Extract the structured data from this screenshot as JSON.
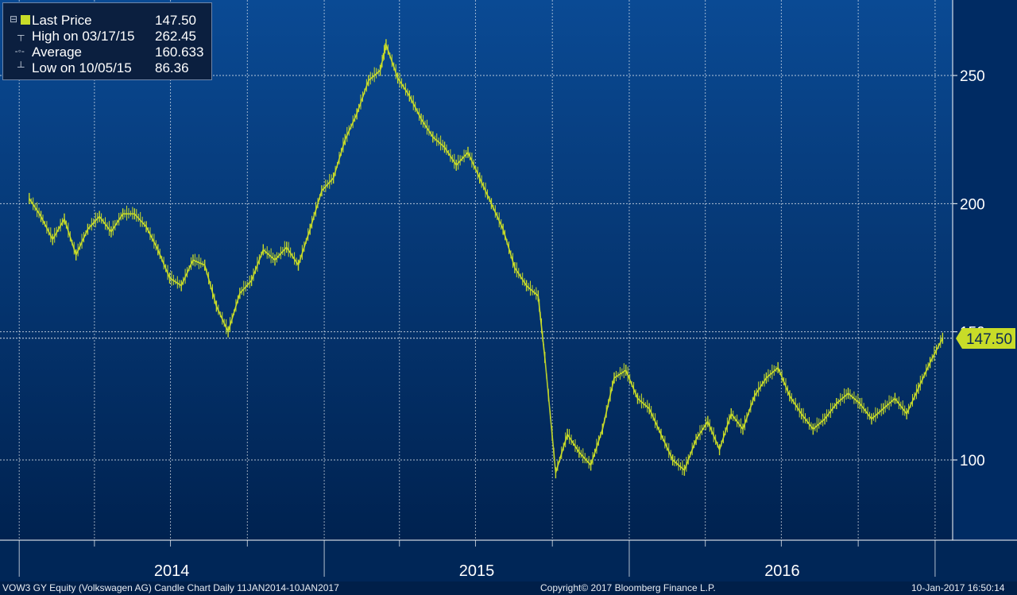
{
  "legend": {
    "last_price_label": "Last Price",
    "last_price_value": "147.50",
    "high_label": "High on 03/17/15",
    "high_value": "262.45",
    "average_label": "Average",
    "average_value": "160.633",
    "low_label": "Low on 10/05/15",
    "low_value": "86.36",
    "series_color": "#c8dc28"
  },
  "price_tag": "147.50",
  "footer": {
    "title": "VOW3 GY Equity (Volkswagen AG) Candle Chart  Daily 11JAN2014-10JAN2017",
    "copyright": "Copyright© 2017 Bloomberg Finance L.P.",
    "timestamp": "10-Jan-2017 16:50:14"
  },
  "chart_data": {
    "type": "line",
    "y_axis_position": "right",
    "ylim": [
      70,
      280
    ],
    "y_ticks": [
      100,
      150,
      200,
      250
    ],
    "y_tick_labels": [
      "100",
      "150",
      "200",
      "250"
    ],
    "x_labels": [
      "2014",
      "2015",
      "2016"
    ],
    "grid": true,
    "background": [
      "#0a4a94",
      "#002250"
    ],
    "series": [
      {
        "color": "#c8dc28",
        "x": [
          "2014-01-13",
          "2014-01-27",
          "2014-02-10",
          "2014-02-24",
          "2014-03-10",
          "2014-03-24",
          "2014-04-07",
          "2014-04-21",
          "2014-05-05",
          "2014-05-19",
          "2014-06-02",
          "2014-06-16",
          "2014-06-30",
          "2014-07-14",
          "2014-07-28",
          "2014-08-11",
          "2014-08-25",
          "2014-09-08",
          "2014-09-22",
          "2014-10-06",
          "2014-10-20",
          "2014-11-03",
          "2014-11-17",
          "2014-12-01",
          "2014-12-15",
          "2014-12-29",
          "2015-01-12",
          "2015-01-26",
          "2015-02-09",
          "2015-02-23",
          "2015-03-09",
          "2015-03-16",
          "2015-03-30",
          "2015-04-13",
          "2015-04-27",
          "2015-05-11",
          "2015-05-25",
          "2015-06-08",
          "2015-06-22",
          "2015-07-06",
          "2015-07-20",
          "2015-08-03",
          "2015-08-17",
          "2015-08-31",
          "2015-09-14",
          "2015-09-22",
          "2015-10-05",
          "2015-10-19",
          "2015-11-02",
          "2015-11-16",
          "2015-11-30",
          "2015-12-14",
          "2015-12-28",
          "2016-01-11",
          "2016-01-25",
          "2016-02-08",
          "2016-02-22",
          "2016-03-07",
          "2016-03-21",
          "2016-04-04",
          "2016-04-18",
          "2016-05-02",
          "2016-05-16",
          "2016-05-30",
          "2016-06-13",
          "2016-06-27",
          "2016-07-11",
          "2016-07-25",
          "2016-08-08",
          "2016-08-22",
          "2016-09-05",
          "2016-09-19",
          "2016-10-03",
          "2016-10-17",
          "2016-10-31",
          "2016-11-14",
          "2016-11-28",
          "2016-12-12",
          "2016-12-26",
          "2017-01-10"
        ],
        "values": [
          202,
          195,
          186,
          194,
          180,
          190,
          195,
          189,
          196,
          196,
          191,
          182,
          171,
          168,
          178,
          176,
          160,
          150,
          165,
          170,
          182,
          178,
          183,
          176,
          190,
          205,
          210,
          225,
          235,
          248,
          252,
          262,
          249,
          242,
          233,
          226,
          222,
          215,
          220,
          210,
          200,
          190,
          175,
          168,
          164,
          140,
          95,
          110,
          103,
          98,
          112,
          132,
          135,
          124,
          120,
          110,
          100,
          96,
          108,
          115,
          104,
          118,
          112,
          125,
          132,
          136,
          125,
          118,
          112,
          116,
          122,
          126,
          122,
          116,
          120,
          124,
          118,
          128,
          138,
          147.5
        ]
      }
    ]
  }
}
